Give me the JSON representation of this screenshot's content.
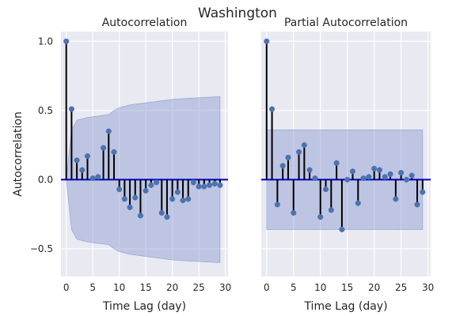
{
  "figure": {
    "suptitle": "Washington"
  },
  "chart_data": [
    {
      "type": "stem",
      "title": "Autocorrelation",
      "xlabel": "Time Lag (day)",
      "ylabel": "Autocorrelation",
      "xlim": [
        -1,
        30.5
      ],
      "ylim": [
        -0.7,
        1.07
      ],
      "xticks": [
        0,
        5,
        10,
        15,
        20,
        25,
        30
      ],
      "yticks": [
        1.0,
        0.5,
        0.0,
        -0.5
      ],
      "ytick_labels": [
        "1.0",
        "0.5",
        "0.0",
        "−0.5"
      ],
      "grid": true,
      "series": [
        {
          "x": [
            0,
            1,
            2,
            3,
            4,
            5,
            6,
            7,
            8,
            9,
            10,
            11,
            12,
            13,
            14,
            15,
            16,
            17,
            18,
            19,
            20,
            21,
            22,
            23,
            24,
            25,
            26,
            27,
            28,
            29
          ],
          "values": [
            1.0,
            0.51,
            0.14,
            0.07,
            0.17,
            0.01,
            0.02,
            0.23,
            0.35,
            0.2,
            -0.07,
            -0.14,
            -0.2,
            -0.13,
            -0.26,
            -0.08,
            -0.04,
            -0.02,
            -0.24,
            -0.27,
            -0.14,
            -0.09,
            -0.15,
            -0.14,
            -0.02,
            -0.05,
            -0.05,
            -0.04,
            -0.03,
            -0.04
          ]
        }
      ],
      "confidence_band": {
        "x": [
          0,
          1,
          2,
          3,
          4,
          6,
          8,
          9,
          10,
          12,
          14,
          16,
          18,
          20,
          24,
          29
        ],
        "upper": [
          0.0,
          0.36,
          0.43,
          0.44,
          0.45,
          0.46,
          0.47,
          0.5,
          0.52,
          0.54,
          0.55,
          0.56,
          0.57,
          0.58,
          0.59,
          0.6
        ],
        "lower": [
          0.0,
          -0.36,
          -0.43,
          -0.44,
          -0.45,
          -0.46,
          -0.47,
          -0.5,
          -0.52,
          -0.54,
          -0.55,
          -0.56,
          -0.57,
          -0.58,
          -0.59,
          -0.6
        ]
      }
    },
    {
      "type": "stem",
      "title": "Partial Autocorrelation",
      "xlabel": "Time Lag (day)",
      "ylabel": "",
      "xlim": [
        -1,
        30.5
      ],
      "ylim": [
        -0.7,
        1.07
      ],
      "xticks": [
        0,
        5,
        10,
        15,
        20,
        25,
        30
      ],
      "yticks": [
        1.0,
        0.5,
        0.0,
        -0.5
      ],
      "ytick_labels": [
        "",
        "",
        "",
        ""
      ],
      "grid": true,
      "series": [
        {
          "x": [
            0,
            1,
            2,
            3,
            4,
            5,
            6,
            7,
            8,
            9,
            10,
            11,
            12,
            13,
            14,
            15,
            16,
            17,
            18,
            19,
            20,
            21,
            22,
            23,
            24,
            25,
            26,
            27,
            28,
            29
          ],
          "values": [
            1.0,
            0.51,
            -0.18,
            0.1,
            0.16,
            -0.24,
            0.2,
            0.25,
            0.07,
            0.01,
            -0.27,
            -0.07,
            -0.22,
            0.12,
            -0.36,
            0.0,
            0.06,
            -0.17,
            0.01,
            0.02,
            0.08,
            0.07,
            0.02,
            0.04,
            -0.14,
            0.05,
            0.0,
            0.03,
            -0.18,
            -0.09
          ]
        }
      ],
      "confidence_band": {
        "x": [
          0,
          1,
          29
        ],
        "upper": [
          0.36,
          0.36,
          0.36
        ],
        "lower": [
          -0.36,
          -0.36,
          -0.36
        ]
      }
    }
  ],
  "colors": {
    "axes_bg": "#e9e9f1",
    "grid": "#ffffff",
    "stem": "#000000",
    "marker": "#4c72b0",
    "zero_line": "#0000cc",
    "band": "#8898d0"
  }
}
